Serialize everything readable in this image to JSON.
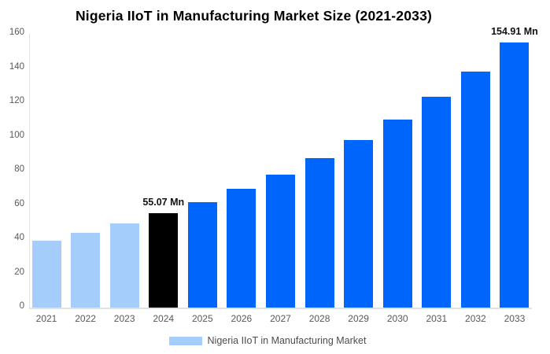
{
  "chart_data": {
    "type": "bar",
    "title": "Nigeria IIoT in Manufacturing Market Size (2021-2033)",
    "unit": "Mn",
    "categories": [
      "2021",
      "2022",
      "2023",
      "2024",
      "2025",
      "2026",
      "2027",
      "2028",
      "2029",
      "2030",
      "2031",
      "2032",
      "2033"
    ],
    "values": [
      39.01,
      43.76,
      49.09,
      55.07,
      61.78,
      69.3,
      77.74,
      87.21,
      97.83,
      109.74,
      123.11,
      138.1,
      154.91
    ],
    "bar_colors": [
      "#a5cdfc",
      "#a5cdfc",
      "#a5cdfc",
      "#000000",
      "#0066fb",
      "#0066fb",
      "#0066fb",
      "#0066fb",
      "#0066fb",
      "#0066fb",
      "#0066fb",
      "#0066fb",
      "#0066fb"
    ],
    "data_labels": {
      "2024": "55.07 Mn",
      "2033": "154.91 Mn"
    },
    "xlabel": "",
    "ylabel": "",
    "ylim": [
      0,
      160
    ],
    "yticks": [
      0,
      20,
      40,
      60,
      80,
      100,
      120,
      140,
      160
    ],
    "grid": false,
    "legend_position": "bottom",
    "legend": [
      {
        "label": "Nigeria IIoT in Manufacturing Market",
        "color": "#a5cdfc"
      }
    ]
  }
}
